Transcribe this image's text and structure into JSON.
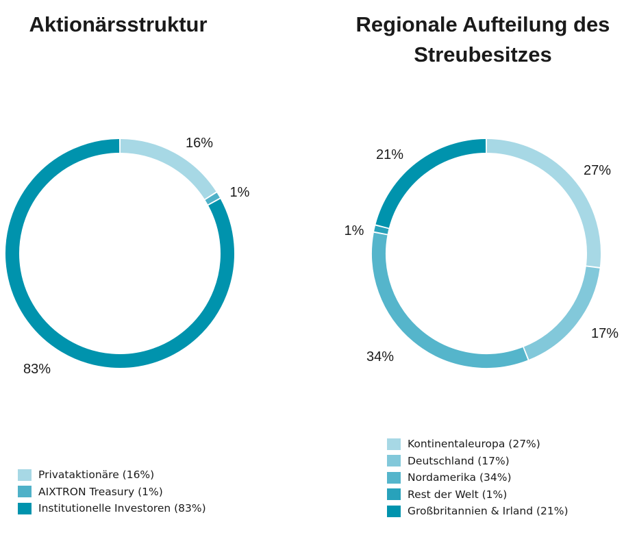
{
  "chart_data": [
    {
      "type": "pie",
      "title": "Aktionärsstruktur",
      "slices": [
        {
          "label": "Privataktionäre",
          "value": 16,
          "display": "16%",
          "legend": "Privataktionäre (16%)",
          "color": "#a7d8e5"
        },
        {
          "label": "AIXTRON Treasury",
          "value": 1,
          "display": "1%",
          "legend": "AIXTRON Treasury (1%)",
          "color": "#4fb1c8"
        },
        {
          "label": "Institutionelle Investoren",
          "value": 83,
          "display": "83%",
          "legend": "Institutionelle Investoren (83%)",
          "color": "#0093ad"
        }
      ],
      "legend_position": "bottom"
    },
    {
      "type": "pie",
      "title": "Regionale Aufteilung des Streubesitzes",
      "title_lines": [
        "Regionale Aufteilung des",
        "Streubesitzes"
      ],
      "slices": [
        {
          "label": "Kontinentaleuropa",
          "value": 27,
          "display": "27%",
          "legend": "Kontinentaleuropa (27%)",
          "color": "#a7d8e5"
        },
        {
          "label": "Deutschland",
          "value": 17,
          "display": "17%",
          "legend": "Deutschland (17%)",
          "color": "#82c8da"
        },
        {
          "label": "Nordamerika",
          "value": 34,
          "display": "34%",
          "legend": "Nordamerika (34%)",
          "color": "#55b5cb"
        },
        {
          "label": "Rest der Welt",
          "value": 1,
          "display": "1%",
          "legend": "Rest der Welt (1%)",
          "color": "#28a2bb"
        },
        {
          "label": "Großbritannien & Irland",
          "value": 21,
          "display": "21%",
          "legend": "Großbritannien & Irland (21%)",
          "color": "#0093ad"
        }
      ],
      "legend_position": "bottom"
    }
  ]
}
